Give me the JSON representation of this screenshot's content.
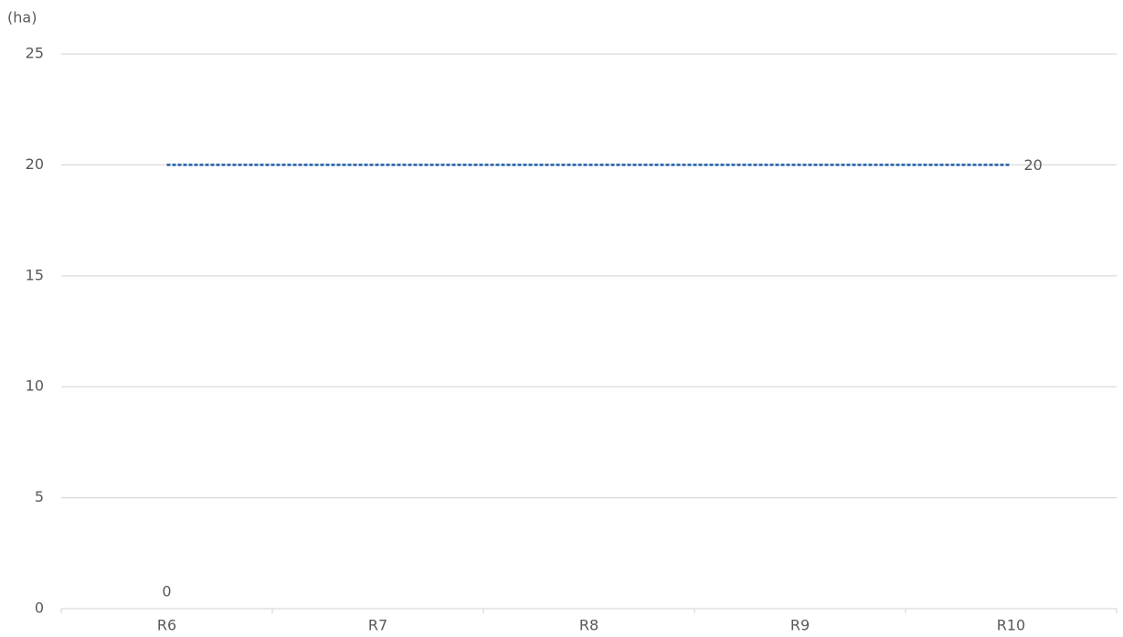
{
  "chart_data": {
    "type": "bar",
    "y_axis_label": "(ha)",
    "categories": [
      "R6",
      "R7",
      "R8",
      "R9",
      "R10"
    ],
    "series": [
      {
        "type": "bar",
        "color": "#4472c4",
        "values": [
          0,
          null,
          null,
          null,
          null
        ],
        "data_labels": "all"
      },
      {
        "type": "line",
        "color": "#1f5fa8",
        "dashed": true,
        "values": [
          20,
          20,
          20,
          20,
          20
        ],
        "data_labels": "last"
      }
    ],
    "ylim": [
      0,
      25
    ],
    "yticks": [
      0,
      5,
      10,
      15,
      20,
      25
    ],
    "grid": true
  }
}
